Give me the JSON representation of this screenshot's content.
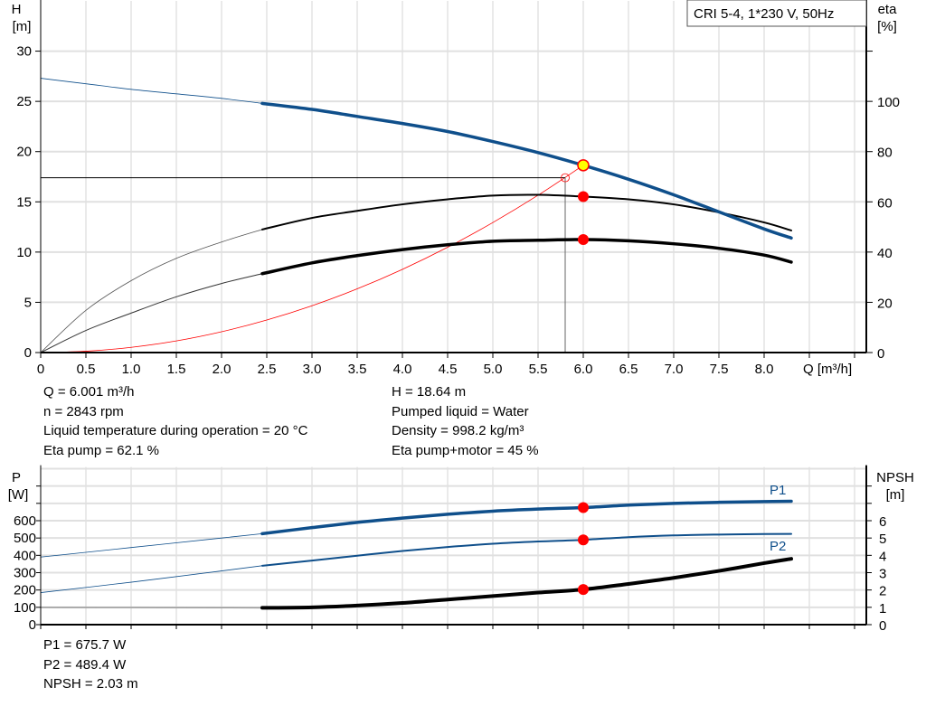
{
  "chart_data": [
    {
      "type": "line",
      "title": "CRI 5-4, 1*230 V, 50Hz",
      "xlabel": "Q [m³/h]",
      "ylabel_left": "H",
      "ylabel_left_unit": "[m]",
      "ylabel_right": "eta",
      "ylabel_right_unit": "[%]",
      "xlim": [
        0,
        9.13
      ],
      "ylim_left": [
        0,
        35
      ],
      "ylim_right": [
        0,
        140
      ],
      "grid": true,
      "x_ticks": [
        "0",
        "0.5",
        "1.0",
        "1.5",
        "2.0",
        "2.5",
        "3.0",
        "3.5",
        "4.0",
        "4.5",
        "5.0",
        "5.5",
        "6.0",
        "6.5",
        "7.0",
        "7.5",
        "8.0"
      ],
      "y_ticks_left": [
        "0",
        "5",
        "10",
        "15",
        "20",
        "25",
        "30"
      ],
      "y_ticks_right": [
        "0",
        "20",
        "40",
        "60",
        "80",
        "100"
      ],
      "operating_range_from_q": 2.45,
      "series": [
        {
          "id": "H",
          "axis": "left",
          "color": "#0f4f8b",
          "x": [
            0,
            0.5,
            1,
            1.5,
            2,
            2.45,
            3,
            3.5,
            4,
            4.5,
            5,
            5.5,
            6,
            6.5,
            7,
            7.5,
            8,
            8.3
          ],
          "y": [
            27.3,
            26.75,
            26.2,
            25.75,
            25.3,
            24.8,
            24.2,
            23.5,
            22.8,
            22.0,
            21.0,
            19.9,
            18.64,
            17.25,
            15.7,
            14.0,
            12.3,
            11.4
          ]
        },
        {
          "id": "eta_pump",
          "axis": "right",
          "color": "#000000",
          "x": [
            0,
            0.5,
            1,
            1.5,
            2,
            2.45,
            3,
            3.5,
            4,
            4.5,
            5,
            5.5,
            6,
            6.5,
            7,
            7.5,
            8,
            8.3
          ],
          "y": [
            0,
            16.8,
            28.6,
            37.5,
            44,
            49,
            53.6,
            56.4,
            59,
            61,
            62.5,
            62.8,
            62.1,
            61,
            59,
            55.8,
            51.8,
            48.6
          ]
        },
        {
          "id": "eta_pump_motor",
          "axis": "right",
          "color": "#000000",
          "x": [
            0,
            0.5,
            1,
            1.5,
            2,
            2.45,
            3,
            3.5,
            4,
            4.5,
            5,
            5.5,
            6,
            6.5,
            7,
            7.5,
            8,
            8.3
          ],
          "y": [
            0,
            8.8,
            15.7,
            22.2,
            27.5,
            31.4,
            35.7,
            38.6,
            41,
            42.9,
            44.3,
            44.7,
            45,
            44.5,
            43.3,
            41.5,
            38.8,
            36
          ]
        },
        {
          "id": "system_curve",
          "axis": "left",
          "color": "#ff0000",
          "x": [
            0,
            0.5,
            1,
            1.5,
            2,
            2.5,
            3,
            3.5,
            4,
            4.5,
            5,
            5.5,
            6
          ],
          "y": [
            0,
            0.13,
            0.52,
            1.16,
            2.07,
            3.24,
            4.66,
            6.34,
            8.28,
            10.48,
            12.94,
            15.66,
            18.64
          ]
        }
      ],
      "duty_point": {
        "q": 6.0,
        "h": 18.64,
        "eta_pump": 62.1,
        "eta_pump_motor": 45
      },
      "reference_point": {
        "q": 5.8,
        "h": 17.4
      }
    },
    {
      "type": "line",
      "ylabel_left": "P",
      "ylabel_left_unit": "[W]",
      "ylabel_right": "NPSH",
      "ylabel_right_unit": "[m]",
      "xlim": [
        0,
        9.13
      ],
      "ylim_left": [
        0,
        910
      ],
      "ylim_right": [
        0,
        9.1
      ],
      "grid": true,
      "y_ticks_left": [
        "0",
        "100",
        "200",
        "300",
        "400",
        "500",
        "600"
      ],
      "y_ticks_right": [
        "0",
        "1",
        "2",
        "3",
        "4",
        "5",
        "6"
      ],
      "operating_range_from_q": 2.45,
      "series": [
        {
          "id": "P1",
          "name": "P1",
          "axis": "left",
          "color": "#0f4f8b",
          "x": [
            0,
            1,
            2,
            2.45,
            3,
            3.5,
            4,
            4.5,
            5,
            5.5,
            6,
            6.5,
            7,
            7.5,
            8,
            8.3
          ],
          "y": [
            390,
            445,
            500,
            525,
            560,
            590,
            615,
            637,
            655,
            667,
            675.7,
            690,
            700,
            706,
            710,
            712
          ]
        },
        {
          "id": "P2",
          "name": "P2",
          "axis": "left",
          "color": "#0f4f8b",
          "x": [
            0,
            1,
            2,
            2.45,
            3,
            3.5,
            4,
            4.5,
            5,
            5.5,
            6,
            6.5,
            7,
            7.5,
            8,
            8.3
          ],
          "y": [
            185,
            245,
            310,
            340,
            370,
            398,
            425,
            448,
            467,
            480,
            489.4,
            505,
            515,
            520,
            523,
            524
          ]
        },
        {
          "id": "NPSH",
          "axis": "right",
          "color": "#000000",
          "x": [
            0,
            1,
            2,
            2.45,
            3,
            3.5,
            4,
            4.5,
            5,
            5.5,
            6,
            6.5,
            7,
            7.5,
            8,
            8.3
          ],
          "y": [
            1.0,
            0.99,
            0.98,
            0.97,
            1.0,
            1.1,
            1.25,
            1.45,
            1.65,
            1.85,
            2.03,
            2.35,
            2.7,
            3.1,
            3.55,
            3.8
          ]
        }
      ],
      "duty_point": {
        "q": 6.0,
        "p1": 675.7,
        "p2": 489.4,
        "npsh": 2.03
      }
    }
  ],
  "readouts_top": {
    "left": [
      "Q = 6.001 m³/h",
      "n = 2843 rpm",
      "Liquid temperature during operation = 20 °C",
      "Eta pump = 62.1 %"
    ],
    "right": [
      "H = 18.64 m",
      "Pumped liquid = Water",
      "Density = 998.2 kg/m³",
      "Eta pump+motor = 45 %"
    ]
  },
  "readouts_bottom": [
    "P1 = 675.7 W",
    "P2 = 489.4 W",
    "NPSH = 2.03 m"
  ],
  "colors": {
    "curve_blue": "#0f4f8b",
    "duty_point_fill": "#ffff00",
    "marker_red": "#ff0000",
    "grid": "#d4d4d4"
  }
}
